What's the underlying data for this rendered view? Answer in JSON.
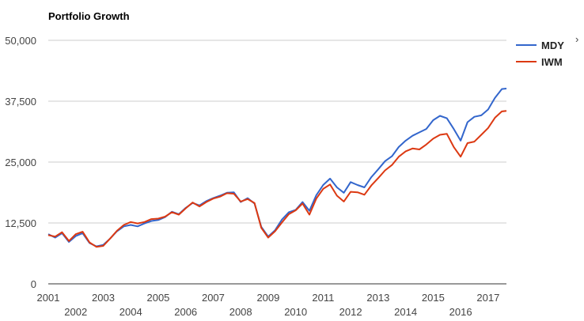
{
  "chart_data": {
    "type": "line",
    "title": "Portfolio Growth",
    "xlabel": "",
    "ylabel": "",
    "ylim": [
      0,
      50000
    ],
    "xlim": [
      "2001-01",
      "2017-09"
    ],
    "y_ticks": [
      "0",
      "12,500",
      "25,000",
      "37,500",
      "50,000"
    ],
    "y_tick_values": [
      0,
      12500,
      25000,
      37500,
      50000
    ],
    "x_ticks_row1": [
      "2001",
      "2003",
      "2005",
      "2007",
      "2009",
      "2011",
      "2013",
      "2015",
      "2017"
    ],
    "x_ticks_row2": [
      "2002",
      "2004",
      "2006",
      "2008",
      "2010",
      "2012",
      "2014",
      "2016"
    ],
    "grid": true,
    "legend_position": "top-right",
    "x": [
      "2001-01",
      "2001-04",
      "2001-07",
      "2001-10",
      "2002-01",
      "2002-04",
      "2002-07",
      "2002-10",
      "2003-01",
      "2003-04",
      "2003-07",
      "2003-10",
      "2004-01",
      "2004-04",
      "2004-07",
      "2004-10",
      "2005-01",
      "2005-04",
      "2005-07",
      "2005-10",
      "2006-01",
      "2006-04",
      "2006-07",
      "2006-10",
      "2007-01",
      "2007-04",
      "2007-07",
      "2007-10",
      "2008-01",
      "2008-04",
      "2008-07",
      "2008-10",
      "2009-01",
      "2009-04",
      "2009-07",
      "2009-10",
      "2010-01",
      "2010-04",
      "2010-07",
      "2010-10",
      "2011-01",
      "2011-04",
      "2011-07",
      "2011-10",
      "2012-01",
      "2012-04",
      "2012-07",
      "2012-10",
      "2013-01",
      "2013-04",
      "2013-07",
      "2013-10",
      "2014-01",
      "2014-04",
      "2014-07",
      "2014-10",
      "2015-01",
      "2015-04",
      "2015-07",
      "2015-10",
      "2016-01",
      "2016-04",
      "2016-07",
      "2016-10",
      "2017-01",
      "2017-04",
      "2017-07",
      "2017-09"
    ],
    "series": [
      {
        "name": "MDY",
        "color": "#3366cc",
        "values": [
          10200,
          9500,
          10400,
          8600,
          9800,
          10400,
          8400,
          7700,
          8000,
          9300,
          10800,
          11800,
          12100,
          11800,
          12400,
          12900,
          13100,
          13700,
          14800,
          14300,
          15600,
          16600,
          16100,
          17000,
          17600,
          18100,
          18700,
          18800,
          16800,
          17600,
          16500,
          11700,
          9700,
          11000,
          13200,
          14700,
          15200,
          16800,
          15000,
          18200,
          20300,
          21600,
          19800,
          18700,
          20900,
          20300,
          19800,
          21900,
          23500,
          25200,
          26200,
          28100,
          29400,
          30400,
          31100,
          31800,
          33600,
          34500,
          34000,
          31800,
          29400,
          33200,
          34300,
          34600,
          35800,
          38200,
          40000,
          40100
        ]
      },
      {
        "name": "IWM",
        "color": "#dc3912",
        "values": [
          10000,
          9700,
          10600,
          8800,
          10200,
          10700,
          8500,
          7600,
          7800,
          9300,
          10900,
          12100,
          12700,
          12400,
          12700,
          13300,
          13400,
          13800,
          14700,
          14200,
          15500,
          16700,
          15900,
          16800,
          17500,
          17900,
          18600,
          18500,
          16900,
          17400,
          16600,
          11500,
          9500,
          10800,
          12600,
          14300,
          15100,
          16500,
          14200,
          17500,
          19500,
          20400,
          18100,
          16900,
          18900,
          18800,
          18300,
          20200,
          21700,
          23300,
          24400,
          26100,
          27200,
          27800,
          27600,
          28600,
          29800,
          30600,
          30800,
          28100,
          26100,
          28900,
          29200,
          30600,
          32000,
          34100,
          35400,
          35500
        ]
      }
    ]
  }
}
